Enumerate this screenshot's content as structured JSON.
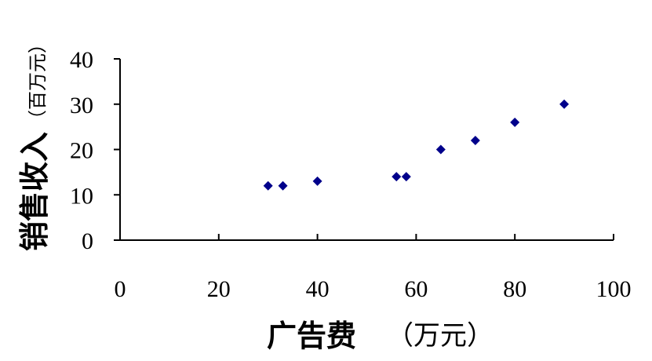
{
  "chart_data": {
    "type": "scatter",
    "xlabel": "广告费",
    "xlabel_unit": "（万元）",
    "ylabel": "销售收入",
    "ylabel_unit": "（百万元）",
    "xlim": [
      0,
      100
    ],
    "ylim": [
      0,
      40
    ],
    "x_ticks": [
      0,
      20,
      40,
      60,
      80,
      100
    ],
    "y_ticks": [
      0,
      10,
      20,
      30,
      40
    ],
    "x_tick_labels": [
      "0",
      "20",
      "40",
      "60",
      "80",
      "100"
    ],
    "y_tick_labels": [
      "0",
      "10",
      "20",
      "30",
      "40"
    ],
    "grid": false,
    "marker": "diamond",
    "marker_color": "#00008B",
    "points": [
      {
        "x": 30,
        "y": 12
      },
      {
        "x": 33,
        "y": 12
      },
      {
        "x": 40,
        "y": 13
      },
      {
        "x": 56,
        "y": 14
      },
      {
        "x": 58,
        "y": 14
      },
      {
        "x": 65,
        "y": 20
      },
      {
        "x": 72,
        "y": 22
      },
      {
        "x": 80,
        "y": 26
      },
      {
        "x": 90,
        "y": 30
      }
    ]
  }
}
